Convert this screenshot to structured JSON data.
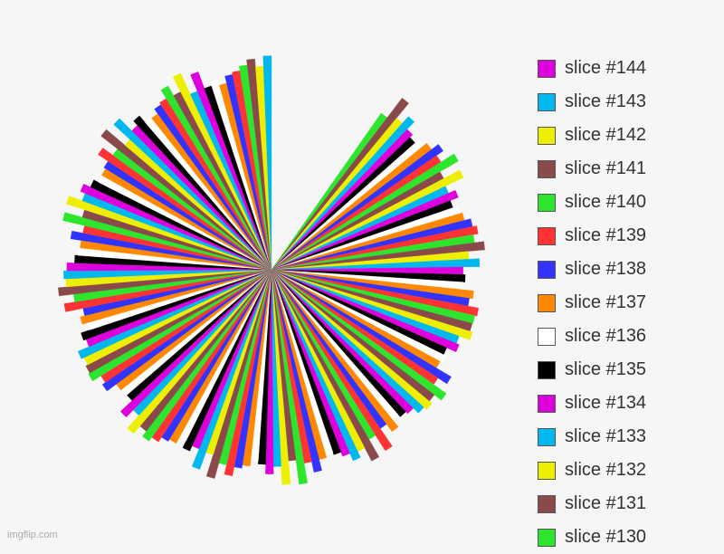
{
  "chart_data": {
    "type": "pie",
    "legend_position": "right",
    "palette": [
      "#2ee52e",
      "#8b4a4a",
      "#eeee00",
      "#00b8ee",
      "#dd00dd",
      "#000000",
      "#ffffff",
      "#ff8800",
      "#3333ff",
      "#ff3333"
    ],
    "slices": [
      {
        "label": "slice #144",
        "color": "#dd00dd"
      },
      {
        "label": "slice #143",
        "color": "#00b8ee"
      },
      {
        "label": "slice #142",
        "color": "#eeee00"
      },
      {
        "label": "slice #141",
        "color": "#8b4a4a"
      },
      {
        "label": "slice #140",
        "color": "#2ee52e"
      },
      {
        "label": "slice #139",
        "color": "#ff3333"
      },
      {
        "label": "slice #138",
        "color": "#3333ff"
      },
      {
        "label": "slice #137",
        "color": "#ff8800"
      },
      {
        "label": "slice #136",
        "color": "#ffffff"
      },
      {
        "label": "slice #135",
        "color": "#000000"
      },
      {
        "label": "slice #134",
        "color": "#dd00dd"
      },
      {
        "label": "slice #133",
        "color": "#00b8ee"
      },
      {
        "label": "slice #132",
        "color": "#eeee00"
      },
      {
        "label": "slice #131",
        "color": "#8b4a4a"
      },
      {
        "label": "slice #130",
        "color": "#2ee52e"
      }
    ],
    "visible_total_slices": 144,
    "missing_sector_degrees": [
      0,
      35
    ]
  },
  "watermark": "imgflip.com"
}
